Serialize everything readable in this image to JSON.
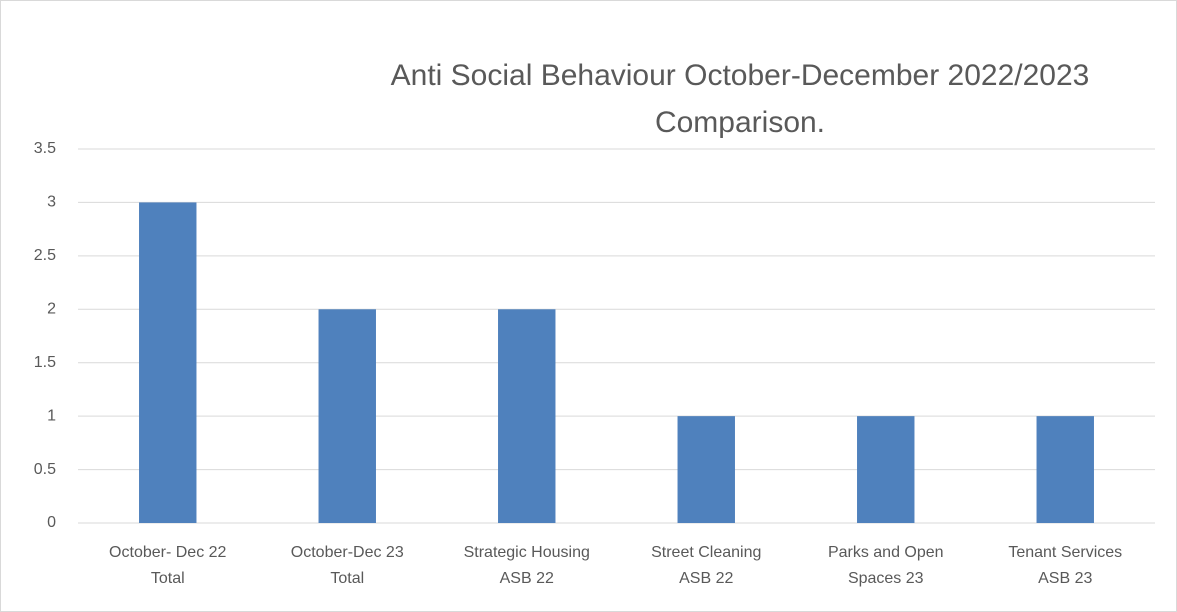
{
  "chart_data": {
    "type": "bar",
    "title": [
      "Anti Social Behaviour October-December 2022/2023",
      "Comparison."
    ],
    "categories": [
      [
        "October- Dec 22",
        "Total"
      ],
      [
        "October-Dec 23",
        "Total"
      ],
      [
        "Strategic Housing",
        "ASB 22"
      ],
      [
        "Street Cleaning",
        "ASB 22"
      ],
      [
        "Parks and Open",
        "Spaces 23"
      ],
      [
        "Tenant Services",
        "ASB 23"
      ]
    ],
    "values": [
      3,
      2,
      2,
      1,
      1,
      1
    ],
    "color": "#4f81bd",
    "ylim": [
      0,
      3.5
    ],
    "yticks": [
      0,
      0.5,
      1,
      1.5,
      2,
      2.5,
      3,
      3.5
    ],
    "grid": true
  }
}
